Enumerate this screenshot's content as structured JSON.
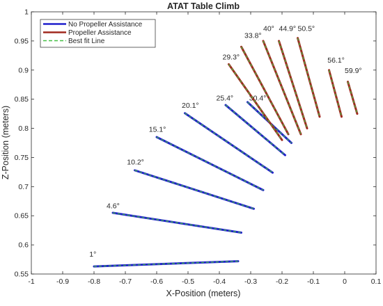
{
  "chart_data": {
    "type": "line",
    "title": "ATAT Table Climb",
    "xlabel": "X-Position (meters)",
    "ylabel": "Z-Position (meters)",
    "xlim": [
      -1,
      0.1
    ],
    "ylim": [
      0.55,
      1
    ],
    "x_ticks": [
      "-1",
      "-0.9",
      "-0.8",
      "-0.7",
      "-0.6",
      "-0.5",
      "-0.4",
      "-0.3",
      "-0.2",
      "-0.1",
      "0",
      "0.1"
    ],
    "y_ticks": [
      "0.55",
      "0.6",
      "0.65",
      "0.7",
      "0.75",
      "0.8",
      "0.85",
      "0.9",
      "0.95",
      "1"
    ],
    "grid": false,
    "legend_position": "top-left",
    "legend": [
      {
        "name": "No Propeller Assistance",
        "color": "#1f1fcc",
        "style": "solid"
      },
      {
        "name": "Propeller Assistance",
        "color": "#a0281e",
        "style": "solid"
      },
      {
        "name": "Best fit Line",
        "color": "#44c044",
        "style": "dashed"
      }
    ],
    "series": [
      {
        "group": "No Propeller Assistance",
        "color": "#1f1fcc",
        "label": "1°",
        "x": [
          -0.8,
          -0.34
        ],
        "y": [
          0.563,
          0.572
        ],
        "label_pos": [
          -0.815,
          0.58
        ]
      },
      {
        "group": "No Propeller Assistance",
        "color": "#1f1fcc",
        "label": "4.6°",
        "x": [
          -0.74,
          -0.33
        ],
        "y": [
          0.655,
          0.621
        ],
        "label_pos": [
          -0.76,
          0.663
        ]
      },
      {
        "group": "No Propeller Assistance",
        "color": "#1f1fcc",
        "label": "10.2°",
        "x": [
          -0.67,
          -0.29
        ],
        "y": [
          0.728,
          0.662
        ],
        "label_pos": [
          -0.695,
          0.738
        ]
      },
      {
        "group": "No Propeller Assistance",
        "color": "#1f1fcc",
        "label": "15.1°",
        "x": [
          -0.6,
          -0.26
        ],
        "y": [
          0.785,
          0.694
        ],
        "label_pos": [
          -0.625,
          0.794
        ]
      },
      {
        "group": "No Propeller Assistance",
        "color": "#1f1fcc",
        "label": "20.1°",
        "x": [
          -0.51,
          -0.23
        ],
        "y": [
          0.826,
          0.724
        ],
        "label_pos": [
          -0.52,
          0.835
        ]
      },
      {
        "group": "No Propeller Assistance",
        "color": "#1f1fcc",
        "label": "25.4°",
        "x": [
          -0.38,
          -0.19
        ],
        "y": [
          0.84,
          0.754
        ],
        "label_pos": [
          -0.41,
          0.848
        ]
      },
      {
        "group": "No Propeller Assistance",
        "color": "#1f1fcc",
        "label": "30.4°",
        "x": [
          -0.31,
          -0.17
        ],
        "y": [
          0.845,
          0.775
        ],
        "label_pos": [
          -0.305,
          0.848
        ]
      },
      {
        "group": "Propeller Assistance",
        "color": "#a0281e",
        "label": "29.3°",
        "x": [
          -0.37,
          -0.2
        ],
        "y": [
          0.91,
          0.78
        ],
        "label_pos": [
          -0.39,
          0.918
        ]
      },
      {
        "group": "Propeller Assistance",
        "color": "#a0281e",
        "label": "33.8°",
        "x": [
          -0.33,
          -0.18
        ],
        "y": [
          0.94,
          0.79
        ],
        "label_pos": [
          -0.32,
          0.955
        ]
      },
      {
        "group": "Propeller Assistance",
        "color": "#a0281e",
        "label": "40°",
        "x": [
          -0.26,
          -0.14
        ],
        "y": [
          0.95,
          0.79
        ],
        "label_pos": [
          -0.26,
          0.967
        ]
      },
      {
        "group": "Propeller Assistance",
        "color": "#a0281e",
        "label": "44.9°",
        "x": [
          -0.21,
          -0.12
        ],
        "y": [
          0.95,
          0.8
        ],
        "label_pos": [
          -0.21,
          0.967
        ]
      },
      {
        "group": "Propeller Assistance",
        "color": "#a0281e",
        "label": "50.5°",
        "x": [
          -0.15,
          -0.08
        ],
        "y": [
          0.955,
          0.82
        ],
        "label_pos": [
          -0.15,
          0.967
        ]
      },
      {
        "group": "Propeller Assistance",
        "color": "#a0281e",
        "label": "56.1°",
        "x": [
          -0.05,
          -0.01
        ],
        "y": [
          0.9,
          0.82
        ],
        "label_pos": [
          -0.055,
          0.913
        ]
      },
      {
        "group": "Propeller Assistance",
        "color": "#a0281e",
        "label": "59.9°",
        "x": [
          0.01,
          0.04
        ],
        "y": [
          0.88,
          0.825
        ],
        "label_pos": [
          0.0,
          0.895
        ]
      }
    ]
  }
}
